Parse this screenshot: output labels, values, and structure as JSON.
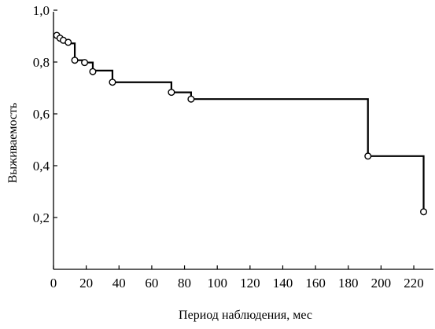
{
  "chart_data": {
    "type": "line",
    "step": true,
    "xlabel": "Период наблюдения, мес",
    "ylabel": "Выживаемость",
    "xlim": [
      0,
      226
    ],
    "ylim": [
      0.0,
      1.0
    ],
    "x_ticks": [
      0,
      20,
      40,
      60,
      80,
      100,
      120,
      140,
      160,
      180,
      200,
      220
    ],
    "x_tick_labels": [
      "0",
      "20",
      "40",
      "60",
      "80",
      "100",
      "120",
      "140",
      "160",
      "180",
      "200",
      "220"
    ],
    "y_ticks": [
      0.2,
      0.4,
      0.6,
      0.8,
      1.0
    ],
    "y_tick_labels": [
      "0,2",
      "0,4",
      "0,6",
      "0,8",
      "1,0"
    ],
    "grid": false,
    "marker": "open-circle",
    "line_color": "#000000",
    "series": [
      {
        "steps": [
          {
            "x": 0,
            "y": 0.905
          },
          {
            "x": 3,
            "y": 0.897
          },
          {
            "x": 5,
            "y": 0.886
          },
          {
            "x": 7,
            "y": 0.879
          },
          {
            "x": 9,
            "y": 0.872
          },
          {
            "x": 13,
            "y": 0.807
          },
          {
            "x": 19,
            "y": 0.798
          },
          {
            "x": 24,
            "y": 0.767
          },
          {
            "x": 36,
            "y": 0.722
          },
          {
            "x": 72,
            "y": 0.683
          },
          {
            "x": 84,
            "y": 0.657
          },
          {
            "x": 192,
            "y": 0.437
          },
          {
            "x": 226,
            "y": 0.22
          }
        ],
        "markers": [
          {
            "x": 2,
            "y": 0.903
          },
          {
            "x": 4,
            "y": 0.892
          },
          {
            "x": 6,
            "y": 0.884
          },
          {
            "x": 9,
            "y": 0.876
          },
          {
            "x": 13,
            "y": 0.807
          },
          {
            "x": 19,
            "y": 0.798
          },
          {
            "x": 24,
            "y": 0.763
          },
          {
            "x": 36,
            "y": 0.722
          },
          {
            "x": 72,
            "y": 0.683
          },
          {
            "x": 84,
            "y": 0.657
          },
          {
            "x": 192,
            "y": 0.437
          },
          {
            "x": 226,
            "y": 0.222
          }
        ]
      }
    ]
  }
}
